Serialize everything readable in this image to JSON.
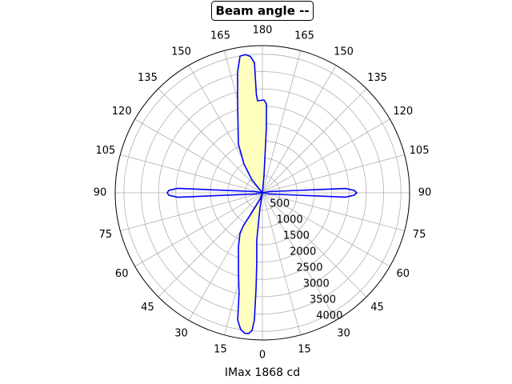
{
  "chart_data": {
    "type": "polar",
    "title": "Beam angle --",
    "xlabel": "IMax 1868 cd",
    "xlim": [
      -180,
      180
    ],
    "xticks": [
      0,
      15,
      30,
      45,
      60,
      75,
      90,
      105,
      120,
      135,
      150,
      165,
      180,
      {
        "value": -15,
        "label": "15"
      },
      {
        "value": -30,
        "label": "30"
      },
      {
        "value": -45,
        "label": "45"
      },
      {
        "value": -60,
        "label": "60"
      },
      {
        "value": -75,
        "label": "75"
      },
      {
        "value": -90,
        "label": "90"
      },
      {
        "value": -105,
        "label": "105"
      },
      {
        "value": -120,
        "label": "120"
      },
      {
        "value": -135,
        "label": "135"
      },
      {
        "value": -150,
        "label": "150"
      },
      {
        "value": -165,
        "label": "165"
      }
    ],
    "ylim": [
      0,
      4250
    ],
    "yticks": [
      500,
      1000,
      1500,
      2000,
      2500,
      3000,
      3500,
      4000
    ],
    "grid": true,
    "series": [
      {
        "color": "#0000ff",
        "fill": "#ffffc0",
        "x": [
          0,
          -9,
          -6.8,
          -4.5,
          -3.8,
          -3.6,
          -4.3,
          -5.5,
          -7,
          -9,
          -11,
          -13,
          -16,
          -18.6,
          -24,
          -28.8,
          -30,
          -28,
          -20,
          0,
          174.6,
          176.5,
          177.4,
          179,
          -177,
          -176.5,
          -176.5,
          -175,
          -173.1,
          -170.7,
          -168.4,
          -164.4,
          -153.8,
          -147.4,
          -141,
          180
        ],
        "values": [
          0,
          450,
          1370,
          2100,
          2755,
          3680,
          3985,
          4080,
          4090,
          4000,
          3740,
          3000,
          2500,
          2170,
          1700,
          1345,
          1100,
          630,
          200,
          0,
          490,
          1875,
          2570,
          2680,
          2660,
          2840,
          3765,
          3950,
          4020,
          4000,
          3560,
          2660,
          1570,
          990,
          475,
          0
        ]
      },
      {
        "color": "#0000ff",
        "x": [
          0,
          80,
          87,
          88.5,
          90,
          91.5,
          93,
          100,
          0,
          -80,
          -87,
          -88.5,
          -90,
          -91.5,
          -93,
          -100,
          0
        ],
        "values": [
          0,
          200,
          2400,
          2650,
          2725,
          2650,
          2400,
          200,
          0,
          200,
          2450,
          2700,
          2750,
          2700,
          2450,
          200,
          0
        ]
      }
    ]
  }
}
